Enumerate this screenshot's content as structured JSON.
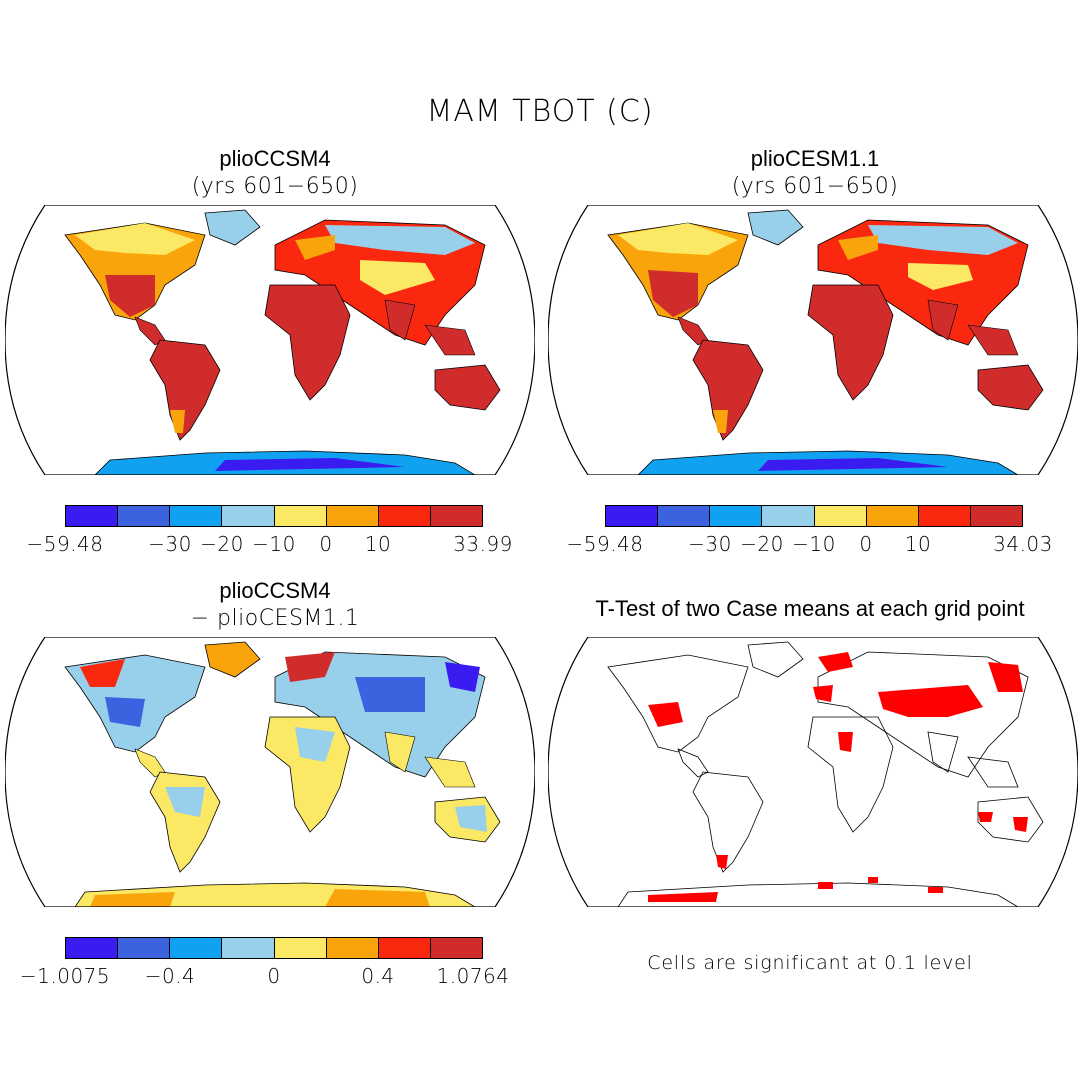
{
  "figure": {
    "title": "MAM TBOT (C)"
  },
  "colors": {
    "abs_scale": [
      "#3a1bf0",
      "#3c62e0",
      "#10a2f0",
      "#98cfea",
      "#fbe965",
      "#f9a40a",
      "#fb2810",
      "#d12c2c"
    ],
    "diff_scale": [
      "#3a1bf0",
      "#3c62e0",
      "#10a2f0",
      "#98cfea",
      "#fbe965",
      "#f9a40a",
      "#fb2810",
      "#d12c2c"
    ],
    "significant": "#ff0000"
  },
  "panels": {
    "top_left": {
      "title": "plioCCSM4",
      "subtitle": "(yrs 601−650)",
      "colorbar_ticks": [
        "−59.48",
        "−30",
        "−20",
        "−10",
        "0",
        "10",
        "33.99"
      ]
    },
    "top_right": {
      "title": "plioCESM1.1",
      "subtitle": "(yrs 601−650)",
      "colorbar_ticks": [
        "−59.48",
        "−30",
        "−20",
        "−10",
        "0",
        "10",
        "34.03"
      ]
    },
    "bottom_left": {
      "title": "plioCCSM4",
      "subtitle": "− plioCESM1.1",
      "colorbar_ticks": [
        "−1.0075",
        "−0.4",
        "0",
        "0.4",
        "1.0764"
      ]
    },
    "bottom_right": {
      "title": "T-Test of two Case means at each grid point",
      "note": "Cells are significant at 0.1 level"
    }
  }
}
